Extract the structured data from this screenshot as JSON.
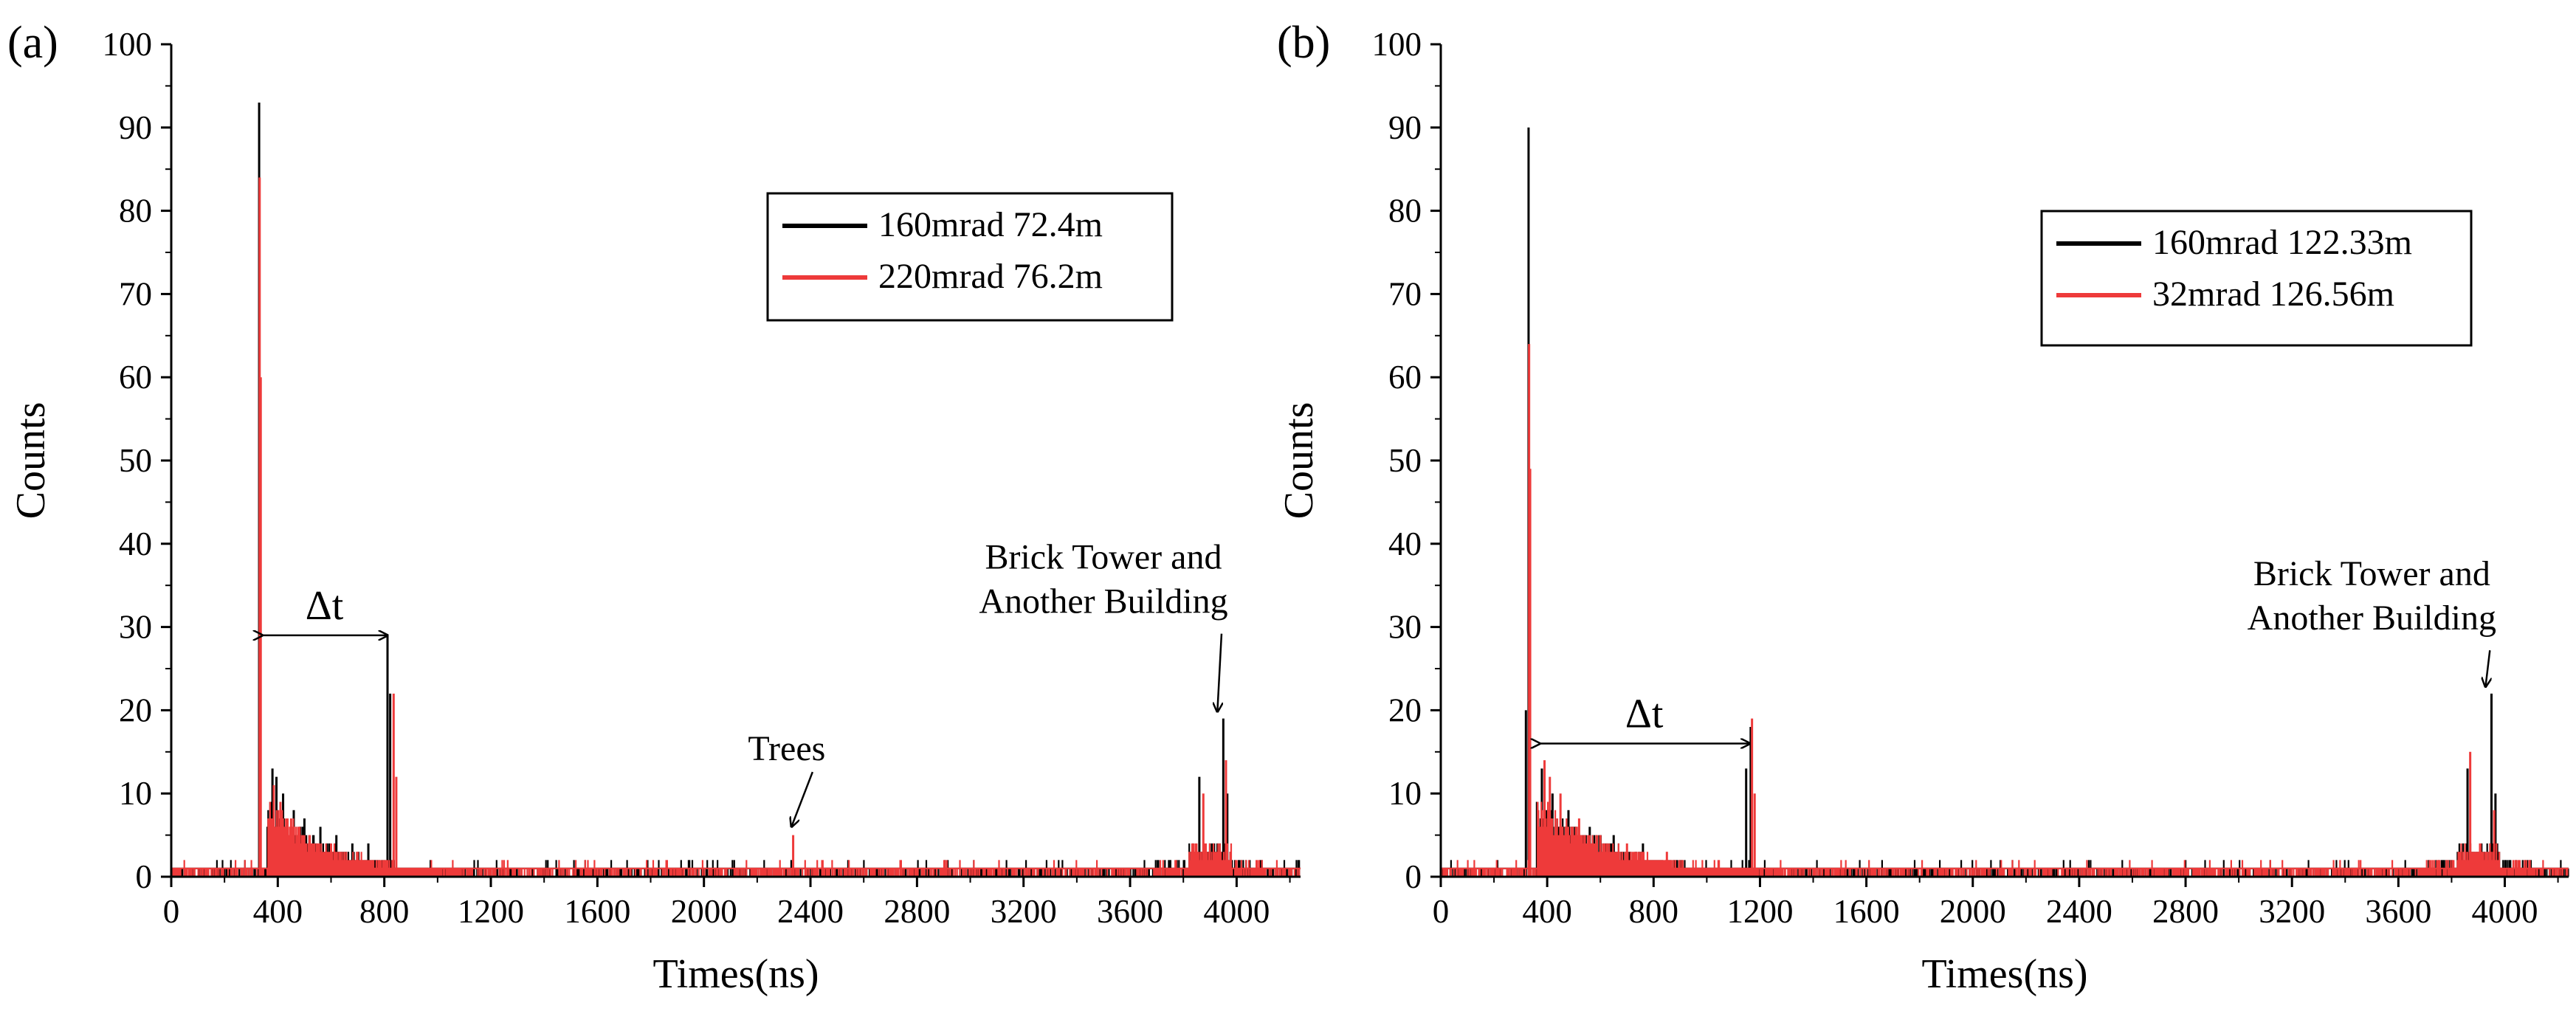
{
  "chart_data": [
    {
      "type": "bar",
      "panel_label": "(a)",
      "xlabel": "Times(ns)",
      "ylabel": "Counts",
      "xlim": [
        0,
        4240
      ],
      "ylim": [
        0,
        100
      ],
      "x_ticks": [
        0,
        400,
        800,
        1200,
        1600,
        2000,
        2400,
        2800,
        3200,
        3600,
        4000
      ],
      "y_ticks": [
        0,
        10,
        20,
        30,
        40,
        50,
        60,
        70,
        80,
        90,
        100
      ],
      "x_tick_labels": [
        "0",
        "400",
        "800",
        "1200",
        "1600",
        "2000",
        "2400",
        "2800",
        "3200",
        "3600",
        "4000"
      ],
      "y_tick_labels": [
        "0",
        "10",
        "20",
        "30",
        "40",
        "50",
        "60",
        "70",
        "80",
        "90",
        "100"
      ],
      "legend_position": "upper-right",
      "series": [
        {
          "name": "160mrad 72.4m",
          "color": "#000000",
          "peaks": [
            {
              "x": 330,
              "y": 93
            },
            {
              "x": 334,
              "y": 47
            },
            {
              "x": 380,
              "y": 13
            },
            {
              "x": 395,
              "y": 12
            },
            {
              "x": 420,
              "y": 10
            },
            {
              "x": 460,
              "y": 8
            },
            {
              "x": 500,
              "y": 7
            },
            {
              "x": 560,
              "y": 6
            },
            {
              "x": 620,
              "y": 5
            },
            {
              "x": 680,
              "y": 4
            },
            {
              "x": 740,
              "y": 4
            },
            {
              "x": 812,
              "y": 29
            },
            {
              "x": 822,
              "y": 22
            },
            {
              "x": 3860,
              "y": 12
            },
            {
              "x": 3950,
              "y": 19
            },
            {
              "x": 3965,
              "y": 10
            }
          ]
        },
        {
          "name": "220mrad 76.2m",
          "color": "#ee3a3a",
          "peaks": [
            {
              "x": 332,
              "y": 84
            },
            {
              "x": 336,
              "y": 60
            },
            {
              "x": 385,
              "y": 11
            },
            {
              "x": 410,
              "y": 9
            },
            {
              "x": 450,
              "y": 7
            },
            {
              "x": 520,
              "y": 5
            },
            {
              "x": 600,
              "y": 4
            },
            {
              "x": 700,
              "y": 3
            },
            {
              "x": 835,
              "y": 22
            },
            {
              "x": 845,
              "y": 12
            },
            {
              "x": 2335,
              "y": 5
            },
            {
              "x": 3875,
              "y": 10
            },
            {
              "x": 3960,
              "y": 14
            }
          ]
        }
      ],
      "annotations": [
        {
          "text": "Δt",
          "from_x": 340,
          "to_x": 810,
          "y": 29
        },
        {
          "text": "Trees",
          "x": 2335,
          "y": 5,
          "label_x": 2200,
          "label_y": 14
        },
        {
          "lines": [
            "Brick Tower and",
            "Another Building"
          ],
          "x": 3950,
          "y": 19,
          "label_x": 3500,
          "label_y": 37
        }
      ]
    },
    {
      "type": "bar",
      "panel_label": "(b)",
      "xlabel": "Times(ns)",
      "ylabel": "Counts",
      "xlim": [
        0,
        4240
      ],
      "ylim": [
        0,
        100
      ],
      "x_ticks": [
        0,
        400,
        800,
        1200,
        1600,
        2000,
        2400,
        2800,
        3200,
        3600,
        4000
      ],
      "y_ticks": [
        0,
        10,
        20,
        30,
        40,
        50,
        60,
        70,
        80,
        90,
        100
      ],
      "x_tick_labels": [
        "0",
        "400",
        "800",
        "1200",
        "1600",
        "2000",
        "2400",
        "2800",
        "3200",
        "3600",
        "4000"
      ],
      "y_tick_labels": [
        "0",
        "10",
        "20",
        "30",
        "40",
        "50",
        "60",
        "70",
        "80",
        "90",
        "100"
      ],
      "legend_position": "upper-right",
      "series": [
        {
          "name": "160mrad 122.33m",
          "color": "#000000",
          "peaks": [
            {
              "x": 330,
              "y": 90
            },
            {
              "x": 334,
              "y": 31
            },
            {
              "x": 320,
              "y": 20
            },
            {
              "x": 380,
              "y": 13
            },
            {
              "x": 420,
              "y": 10
            },
            {
              "x": 480,
              "y": 8
            },
            {
              "x": 560,
              "y": 6
            },
            {
              "x": 650,
              "y": 5
            },
            {
              "x": 760,
              "y": 4
            },
            {
              "x": 1148,
              "y": 13
            },
            {
              "x": 1165,
              "y": 18
            },
            {
              "x": 3860,
              "y": 13
            },
            {
              "x": 3950,
              "y": 22
            },
            {
              "x": 3965,
              "y": 10
            }
          ]
        },
        {
          "name": "32mrad 126.56m",
          "color": "#ee3a3a",
          "peaks": [
            {
              "x": 332,
              "y": 64
            },
            {
              "x": 336,
              "y": 49
            },
            {
              "x": 390,
              "y": 14
            },
            {
              "x": 410,
              "y": 12
            },
            {
              "x": 450,
              "y": 10
            },
            {
              "x": 520,
              "y": 7
            },
            {
              "x": 600,
              "y": 5
            },
            {
              "x": 700,
              "y": 4
            },
            {
              "x": 850,
              "y": 3
            },
            {
              "x": 1170,
              "y": 19
            },
            {
              "x": 1180,
              "y": 10
            },
            {
              "x": 3870,
              "y": 15
            },
            {
              "x": 3960,
              "y": 8
            }
          ]
        }
      ],
      "annotations": [
        {
          "text": "Δt",
          "from_x": 370,
          "to_x": 1160,
          "y": 16
        },
        {
          "lines": [
            "Brick Tower and",
            "Another Building"
          ],
          "x": 3950,
          "y": 22,
          "label_x": 3500,
          "label_y": 35
        }
      ]
    }
  ]
}
